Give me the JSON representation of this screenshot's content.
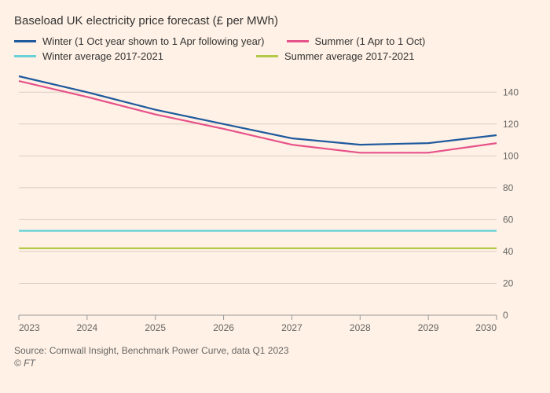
{
  "subtitle": "Baseload UK electricity price forecast (£ per MWh)",
  "source": "Source: Cornwall Insight, Benchmark Power Curve, data Q1 2023",
  "copyright": "© FT",
  "chart": {
    "type": "line",
    "background": "#fff1e5",
    "grid_color": "#d9cdc2",
    "baseline_color": "#999999",
    "label_color": "#666666",
    "label_fontsize": 12,
    "x": {
      "min": 2023,
      "max": 2030,
      "ticks": [
        2023,
        2024,
        2025,
        2026,
        2027,
        2028,
        2029,
        2030
      ]
    },
    "y": {
      "min": 0,
      "max": 150,
      "ticks": [
        0,
        20,
        40,
        60,
        80,
        100,
        120,
        140
      ]
    },
    "legend": [
      {
        "label": "Winter (1 Oct year shown to 1 Apr following year)",
        "color": "#1f5a9e"
      },
      {
        "label": "Summer (1 Apr to 1 Oct)",
        "color": "#e6528a"
      },
      {
        "label": "Winter average 2017-2021",
        "color": "#66d1d6"
      },
      {
        "label": "Summer average 2017-2021",
        "color": "#b3c94a"
      }
    ],
    "series": {
      "winter": {
        "color": "#1f5a9e",
        "x": [
          2023,
          2024,
          2025,
          2026,
          2027,
          2028,
          2029,
          2030
        ],
        "y": [
          150,
          140,
          129,
          120,
          111,
          107,
          108,
          113
        ]
      },
      "summer": {
        "color": "#e6528a",
        "x": [
          2023,
          2024,
          2025,
          2026,
          2027,
          2028,
          2029,
          2030
        ],
        "y": [
          147,
          137,
          126,
          117,
          107,
          102,
          102,
          108
        ]
      },
      "winter_avg": {
        "color": "#66d1d6",
        "x": [
          2023,
          2030
        ],
        "y": [
          53,
          53
        ]
      },
      "summer_avg": {
        "color": "#b3c94a",
        "x": [
          2023,
          2030
        ],
        "y": [
          42,
          42
        ]
      }
    }
  }
}
